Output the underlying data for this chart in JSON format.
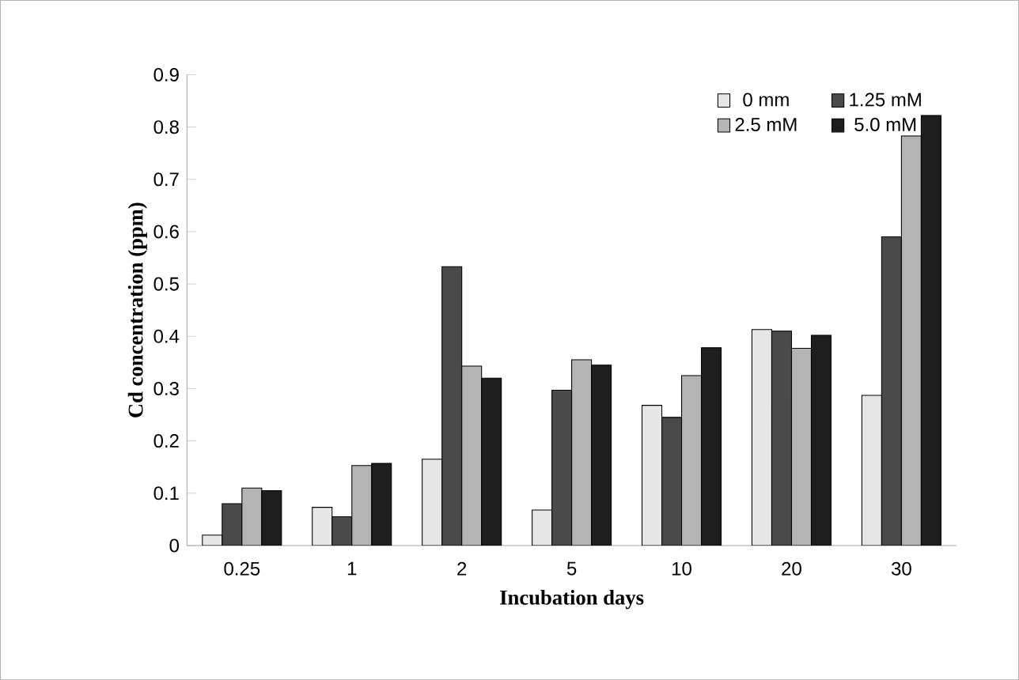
{
  "chart_data": {
    "type": "bar",
    "xlabel": "Incubation days",
    "ylabel": "Cd concentration (ppm)",
    "categories": [
      "0.25",
      "1",
      "2",
      "5",
      "10",
      "20",
      "30"
    ],
    "series": [
      {
        "name": "0 mm",
        "color": "#e6e6e6",
        "values": [
          0.02,
          0.073,
          0.165,
          0.068,
          0.268,
          0.413,
          0.287
        ]
      },
      {
        "name": "1.25 mM",
        "color": "#4a4a4a",
        "values": [
          0.08,
          0.055,
          0.533,
          0.297,
          0.245,
          0.41,
          0.59
        ]
      },
      {
        "name": "2.5 mM",
        "color": "#b4b4b4",
        "values": [
          0.11,
          0.153,
          0.343,
          0.355,
          0.325,
          0.377,
          0.783
        ]
      },
      {
        "name": "5.0 mM",
        "color": "#1e1e1e",
        "values": [
          0.105,
          0.157,
          0.32,
          0.345,
          0.378,
          0.402,
          0.822
        ]
      }
    ],
    "ylim": [
      0,
      0.9
    ],
    "yticks": [
      0,
      0.1,
      0.2,
      0.3,
      0.4,
      0.5,
      0.6,
      0.7,
      0.8,
      0.9
    ],
    "grid": false,
    "legend": "top right"
  }
}
